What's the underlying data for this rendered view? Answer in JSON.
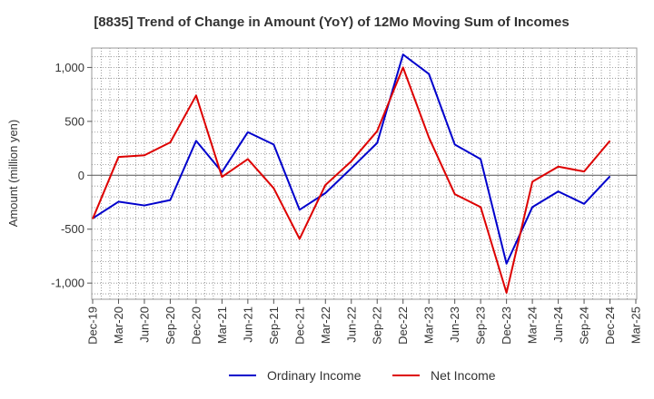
{
  "chart_data": {
    "type": "line",
    "title": "[8835]  Trend of Change in Amount (YoY) of 12Mo Moving Sum of Incomes",
    "xlabel": "",
    "ylabel": "Amount (million yen)",
    "ylim": [
      -1150,
      1180
    ],
    "yticks": [
      1000,
      500,
      0,
      -500,
      -1000
    ],
    "ytick_labels": [
      "1,000",
      "500",
      "0",
      "-500",
      "-1,000"
    ],
    "categories": [
      "Dec-19",
      "Mar-20",
      "Jun-20",
      "Sep-20",
      "Dec-20",
      "Mar-21",
      "Jun-21",
      "Sep-21",
      "Dec-21",
      "Mar-22",
      "Jun-22",
      "Sep-22",
      "Dec-22",
      "Mar-23",
      "Jun-23",
      "Sep-23",
      "Dec-23",
      "Mar-24",
      "Jun-24",
      "Sep-24",
      "Dec-24",
      "Mar-25"
    ],
    "series": [
      {
        "name": "Ordinary Income",
        "color": "#0000cc",
        "values": [
          -400,
          -245,
          -280,
          -230,
          320,
          30,
          400,
          285,
          -320,
          -165,
          65,
          300,
          1120,
          940,
          285,
          150,
          -820,
          -295,
          -150,
          -265,
          -10,
          null
        ]
      },
      {
        "name": "Net Income",
        "color": "#dd0000",
        "values": [
          -405,
          170,
          185,
          305,
          740,
          -15,
          150,
          -120,
          -590,
          -90,
          130,
          410,
          1000,
          350,
          -175,
          -295,
          -1090,
          -60,
          80,
          35,
          320,
          null
        ]
      }
    ],
    "legend_position": "bottom-center",
    "grid": true
  }
}
